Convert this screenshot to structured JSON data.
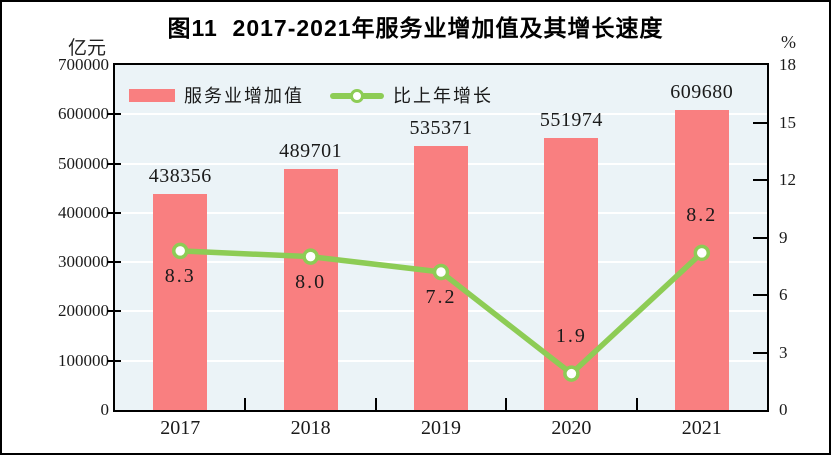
{
  "figure": {
    "title": "图11  2017-2021年服务业增加值及其增长速度",
    "left_axis_unit": "亿元",
    "right_axis_unit": "%"
  },
  "colors": {
    "bar": "#F97F80",
    "line": "#8DCC55",
    "plot_background": "#EBF3F7",
    "gridline": "#FFFFFF",
    "frame": "#000000",
    "text": "#1a1a1a"
  },
  "chart_data": {
    "type": "bar",
    "subtype": "bar+line combo, dual axis",
    "title": "图11  2017-2021年服务业增加值及其增长速度",
    "categories": [
      "2017",
      "2018",
      "2019",
      "2020",
      "2021"
    ],
    "series": [
      {
        "name": "服务业增加值",
        "type": "bar",
        "axis": "left",
        "unit": "亿元",
        "color": "#F97F80",
        "values": [
          438356,
          489701,
          535371,
          551974,
          609680
        ],
        "display_values": [
          "438356",
          "489701",
          "535371",
          "551974",
          "609680"
        ]
      },
      {
        "name": "比上年增长",
        "type": "line",
        "axis": "right",
        "unit": "%",
        "color": "#8DCC55",
        "marker": "circle-white-fill-green-stroke",
        "values": [
          8.3,
          8.0,
          7.2,
          1.9,
          8.2
        ],
        "display_values": [
          "8.3",
          "8.0",
          "7.2",
          "1.9",
          "8.2"
        ],
        "label_positions": [
          "below",
          "below",
          "below",
          "above",
          "above"
        ]
      }
    ],
    "left_axis": {
      "unit": "亿元",
      "min": 0,
      "max": 700000,
      "tick_interval": 100000,
      "tick_labels": [
        "0",
        "100000",
        "200000",
        "300000",
        "400000",
        "500000",
        "600000",
        "700000"
      ]
    },
    "right_axis": {
      "unit": "%",
      "min": 0,
      "max": 18,
      "tick_interval": 3,
      "tick_labels": [
        "0",
        "3",
        "6",
        "9",
        "12",
        "15",
        "18"
      ]
    },
    "grid": "horizontal white gridlines",
    "legend_position": "inside-top-left",
    "plot_background": "#EBF3F7"
  }
}
